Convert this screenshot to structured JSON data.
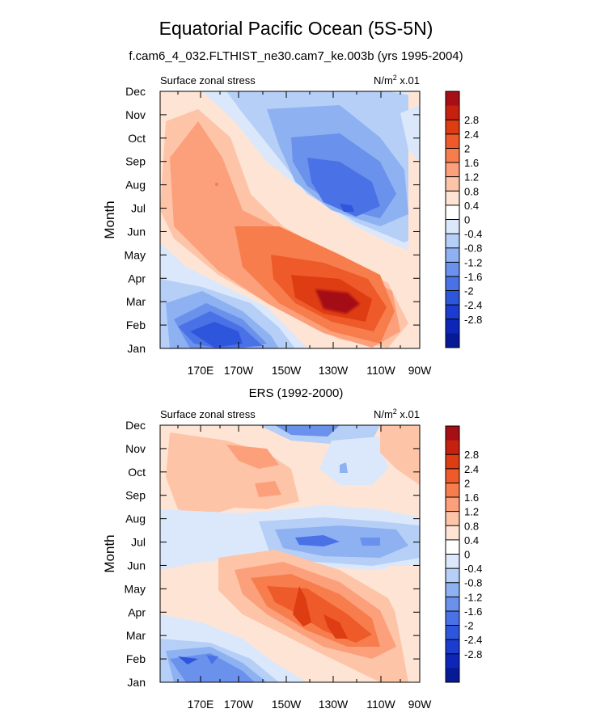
{
  "title": "Equatorial Pacific Ocean (5S-5N)",
  "subtitle": "f.cam6_4_032.FLTHIST_ne30.cam7_ke.003b (yrs 1995-2004)",
  "colorbar": {
    "labels": [
      "2.8",
      "2.4",
      "2",
      "1.6",
      "1.2",
      "0.8",
      "0.4",
      "0",
      "-0.4",
      "-0.8",
      "-1.2",
      "-1.6",
      "-2",
      "-2.4",
      "-2.8"
    ],
    "colors": [
      "#a50f15",
      "#c6210f",
      "#de3c12",
      "#ee5a2a",
      "#f77d4d",
      "#fba07a",
      "#fdc4a8",
      "#fee4d4",
      "#ffffff",
      "#dbe8fb",
      "#b6cff7",
      "#8eb1f2",
      "#6a91ec",
      "#4a72e6",
      "#2e56dc",
      "#1a3ccf",
      "#0d26b8",
      "#071a96"
    ]
  },
  "chart_data": [
    {
      "type": "heatmap",
      "title": "",
      "left_label": "Surface zonal stress",
      "units_prefix": "N/m",
      "units_exp": "2",
      "units_suffix": " x.01",
      "ylabel": "Month",
      "xlabel": "",
      "x_ticks": [
        "170E",
        "170W",
        "150W",
        "130W",
        "110W",
        "90W"
      ],
      "y_ticks": [
        "Jan",
        "Feb",
        "Mar",
        "Apr",
        "May",
        "Jun",
        "Jul",
        "Aug",
        "Sep",
        "Oct",
        "Nov",
        "Dec"
      ],
      "x_range": [
        "~155E",
        "90W"
      ],
      "y_range": [
        "Jan",
        "Dec"
      ],
      "value_range": [
        -2.8,
        2.8
      ],
      "features": [
        {
          "lon": "125W",
          "month": "Mar",
          "value": 2.9
        },
        {
          "lon": "165E",
          "month": "Aug",
          "value": 1.3
        },
        {
          "lon": "130W",
          "month": "Aug",
          "value": -2.0
        },
        {
          "lon": "170W",
          "month": "Feb",
          "value": -2.0
        }
      ]
    },
    {
      "type": "heatmap",
      "title": "ERS (1992-2000)",
      "left_label": "Surface zonal stress",
      "units_prefix": "N/m",
      "units_exp": "2",
      "units_suffix": " x.01",
      "ylabel": "Month",
      "xlabel": "",
      "x_ticks": [
        "170E",
        "170W",
        "150W",
        "130W",
        "110W",
        "90W"
      ],
      "y_ticks": [
        "Jan",
        "Feb",
        "Mar",
        "Apr",
        "May",
        "Jun",
        "Jul",
        "Aug",
        "Sep",
        "Oct",
        "Nov",
        "Dec"
      ],
      "x_range": [
        "~155E",
        "90W"
      ],
      "y_range": [
        "Jan",
        "Dec"
      ],
      "value_range": [
        -2.8,
        2.8
      ],
      "features": [
        {
          "lon": "135W",
          "month": "Apr",
          "value": 1.6
        },
        {
          "lon": "125W",
          "month": "Jul",
          "value": -1.6
        },
        {
          "lon": "170W",
          "month": "Feb",
          "value": -1.6
        }
      ]
    }
  ]
}
